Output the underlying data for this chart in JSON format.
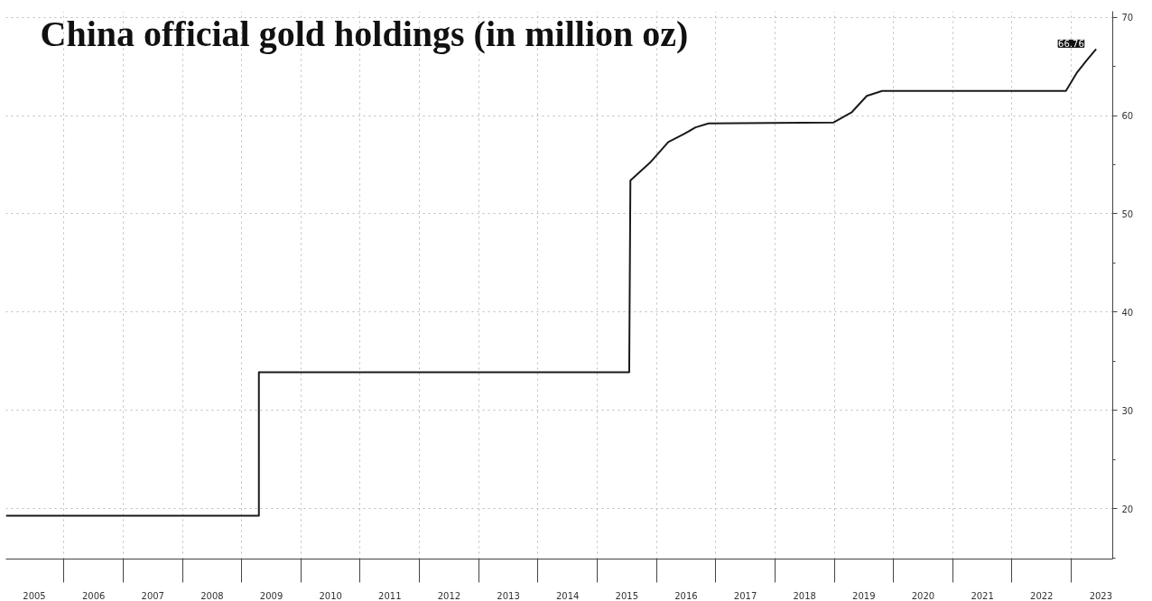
{
  "chart_data": {
    "type": "line",
    "title": "China official gold holdings (in  million oz)",
    "x": [
      2005.02,
      2009.29,
      2009.29,
      2015.54,
      2015.56,
      2015.89,
      2016.2,
      2016.46,
      2016.66,
      2016.88,
      2018.99,
      2019.29,
      2019.55,
      2019.81,
      2022.91,
      2023.1,
      2023.26,
      2023.42
    ],
    "series": [
      {
        "color": "#1a1a1a",
        "values": [
          19.3,
          19.3,
          33.9,
          33.9,
          53.4,
          55.2,
          57.3,
          58.1,
          58.8,
          59.2,
          59.3,
          60.3,
          62.0,
          62.5,
          62.5,
          64.4,
          65.6,
          66.76
        ]
      }
    ],
    "annotations": [
      {
        "text": "66.76",
        "x": 2023.42,
        "y": 66.76
      }
    ],
    "xlim": [
      2005.02,
      2023.7
    ],
    "ylim": [
      14.9,
      70.6
    ],
    "xticks": [
      {
        "value": 2005.5,
        "label": "2005"
      },
      {
        "value": 2006,
        "label": null
      },
      {
        "value": 2006.5,
        "label": "2006"
      },
      {
        "value": 2007,
        "label": null
      },
      {
        "value": 2007.5,
        "label": "2007"
      },
      {
        "value": 2008,
        "label": null
      },
      {
        "value": 2008.5,
        "label": "2008"
      },
      {
        "value": 2009,
        "label": null
      },
      {
        "value": 2009.5,
        "label": "2009"
      },
      {
        "value": 2010,
        "label": null
      },
      {
        "value": 2010.5,
        "label": "2010"
      },
      {
        "value": 2011,
        "label": null
      },
      {
        "value": 2011.5,
        "label": "2011"
      },
      {
        "value": 2012,
        "label": null
      },
      {
        "value": 2012.5,
        "label": "2012"
      },
      {
        "value": 2013,
        "label": null
      },
      {
        "value": 2013.5,
        "label": "2013"
      },
      {
        "value": 2014,
        "label": null
      },
      {
        "value": 2014.5,
        "label": "2014"
      },
      {
        "value": 2015,
        "label": null
      },
      {
        "value": 2015.5,
        "label": "2015"
      },
      {
        "value": 2016,
        "label": null
      },
      {
        "value": 2016.5,
        "label": "2016"
      },
      {
        "value": 2017,
        "label": null
      },
      {
        "value": 2017.5,
        "label": "2017"
      },
      {
        "value": 2018,
        "label": null
      },
      {
        "value": 2018.5,
        "label": "2018"
      },
      {
        "value": 2019,
        "label": null
      },
      {
        "value": 2019.5,
        "label": "2019"
      },
      {
        "value": 2020,
        "label": null
      },
      {
        "value": 2020.5,
        "label": "2020"
      },
      {
        "value": 2021,
        "label": null
      },
      {
        "value": 2021.5,
        "label": "2021"
      },
      {
        "value": 2022,
        "label": null
      },
      {
        "value": 2022.5,
        "label": "2022"
      },
      {
        "value": 2023,
        "label": null
      },
      {
        "value": 2023.5,
        "label": "2023"
      }
    ],
    "yticks": [
      20,
      30,
      40,
      50,
      60,
      70
    ],
    "grid": true,
    "marker": "none",
    "line_style": "solid"
  }
}
